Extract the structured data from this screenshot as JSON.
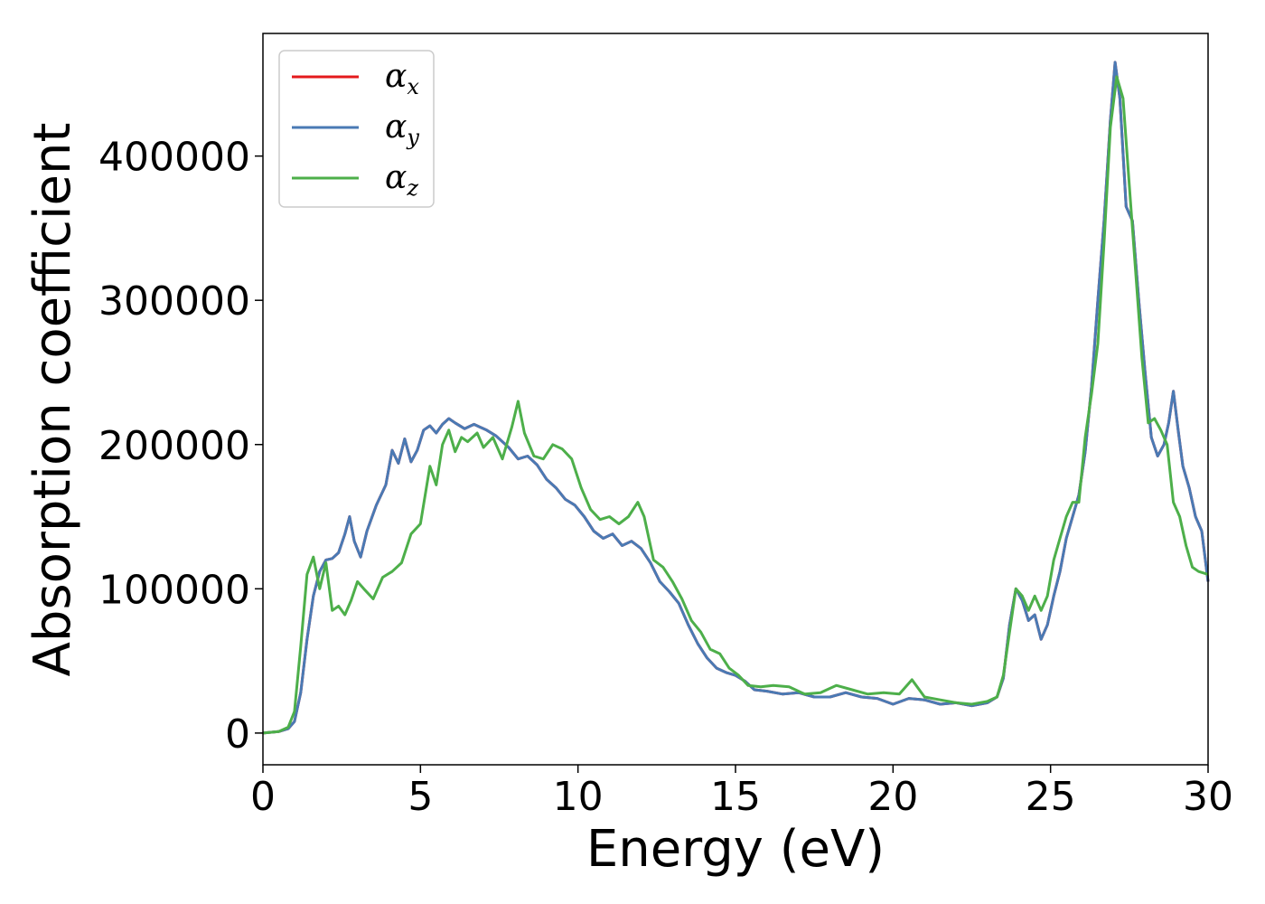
{
  "chart_data": {
    "type": "line",
    "xlabel": "Energy (eV)",
    "ylabel": "Absorption coefficient",
    "xlim": [
      0,
      30
    ],
    "ylim": [
      -22000,
      485000
    ],
    "xticks": [
      "0",
      "5",
      "10",
      "15",
      "20",
      "25",
      "30"
    ],
    "yticks": [
      "0",
      "100000",
      "200000",
      "300000",
      "400000"
    ],
    "grid": false,
    "legend_placement": "top-left",
    "series": [
      {
        "name": "αx",
        "symbol": "α",
        "sub": "x",
        "color": "#e41a1c",
        "x": [
          0,
          0.5,
          0.8,
          1.0,
          1.2,
          1.4,
          1.6,
          1.8,
          2.0,
          2.2,
          2.4,
          2.6,
          2.75,
          2.9,
          3.1,
          3.3,
          3.6,
          3.9,
          4.1,
          4.3,
          4.5,
          4.7,
          4.9,
          5.1,
          5.3,
          5.5,
          5.7,
          5.9,
          6.1,
          6.4,
          6.7,
          6.9,
          7.1,
          7.4,
          7.8,
          8.1,
          8.4,
          8.7,
          9.0,
          9.3,
          9.6,
          9.9,
          10.2,
          10.5,
          10.8,
          11.1,
          11.4,
          11.7,
          12.0,
          12.3,
          12.6,
          12.9,
          13.2,
          13.5,
          13.8,
          14.1,
          14.4,
          14.7,
          15.0,
          15.3,
          15.6,
          16.0,
          16.5,
          17.0,
          17.5,
          18.0,
          18.5,
          19.0,
          19.5,
          20.0,
          20.5,
          21.0,
          21.5,
          22.0,
          22.5,
          23.0,
          23.3,
          23.5,
          23.7,
          23.9,
          24.1,
          24.3,
          24.5,
          24.7,
          24.9,
          25.1,
          25.3,
          25.5,
          25.7,
          25.9,
          26.1,
          26.3,
          26.5,
          26.7,
          26.9,
          27.05,
          27.2,
          27.4,
          27.6,
          27.8,
          28.0,
          28.2,
          28.4,
          28.6,
          28.75,
          28.9,
          29.05,
          29.2,
          29.4,
          29.6,
          29.8,
          30.0
        ],
        "y": [
          0,
          1000,
          3000,
          8000,
          28000,
          65000,
          95000,
          112000,
          120000,
          121000,
          125000,
          138000,
          150000,
          133000,
          122000,
          140000,
          158000,
          172000,
          196000,
          187000,
          204000,
          188000,
          196000,
          210000,
          213000,
          208000,
          214000,
          218000,
          215000,
          211000,
          214000,
          212000,
          210000,
          206000,
          198000,
          190000,
          192000,
          186000,
          176000,
          170000,
          162000,
          158000,
          150000,
          140000,
          135000,
          138000,
          130000,
          133000,
          128000,
          118000,
          105000,
          98000,
          90000,
          75000,
          62000,
          52000,
          45000,
          42000,
          40000,
          36000,
          30000,
          29000,
          27000,
          28000,
          25000,
          25000,
          28000,
          25000,
          24000,
          20000,
          24000,
          23000,
          20000,
          21000,
          19000,
          21000,
          25000,
          38000,
          75000,
          100000,
          92000,
          78000,
          82000,
          65000,
          75000,
          95000,
          112000,
          135000,
          150000,
          165000,
          195000,
          240000,
          300000,
          355000,
          425000,
          465000,
          440000,
          365000,
          355000,
          300000,
          250000,
          205000,
          192000,
          200000,
          215000,
          237000,
          210000,
          185000,
          170000,
          150000,
          140000,
          105000
        ]
      },
      {
        "name": "αy",
        "symbol": "α",
        "sub": "y",
        "color": "#4a7ab4",
        "x": [
          0,
          0.5,
          0.8,
          1.0,
          1.2,
          1.4,
          1.6,
          1.8,
          2.0,
          2.2,
          2.4,
          2.6,
          2.75,
          2.9,
          3.1,
          3.3,
          3.6,
          3.9,
          4.1,
          4.3,
          4.5,
          4.7,
          4.9,
          5.1,
          5.3,
          5.5,
          5.7,
          5.9,
          6.1,
          6.4,
          6.7,
          6.9,
          7.1,
          7.4,
          7.8,
          8.1,
          8.4,
          8.7,
          9.0,
          9.3,
          9.6,
          9.9,
          10.2,
          10.5,
          10.8,
          11.1,
          11.4,
          11.7,
          12.0,
          12.3,
          12.6,
          12.9,
          13.2,
          13.5,
          13.8,
          14.1,
          14.4,
          14.7,
          15.0,
          15.3,
          15.6,
          16.0,
          16.5,
          17.0,
          17.5,
          18.0,
          18.5,
          19.0,
          19.5,
          20.0,
          20.5,
          21.0,
          21.5,
          22.0,
          22.5,
          23.0,
          23.3,
          23.5,
          23.7,
          23.9,
          24.1,
          24.3,
          24.5,
          24.7,
          24.9,
          25.1,
          25.3,
          25.5,
          25.7,
          25.9,
          26.1,
          26.3,
          26.5,
          26.7,
          26.9,
          27.05,
          27.2,
          27.4,
          27.6,
          27.8,
          28.0,
          28.2,
          28.4,
          28.6,
          28.75,
          28.9,
          29.05,
          29.2,
          29.4,
          29.6,
          29.8,
          30.0
        ],
        "y": [
          0,
          1000,
          3000,
          8000,
          28000,
          65000,
          95000,
          112000,
          120000,
          121000,
          125000,
          138000,
          150000,
          133000,
          122000,
          140000,
          158000,
          172000,
          196000,
          187000,
          204000,
          188000,
          196000,
          210000,
          213000,
          208000,
          214000,
          218000,
          215000,
          211000,
          214000,
          212000,
          210000,
          206000,
          198000,
          190000,
          192000,
          186000,
          176000,
          170000,
          162000,
          158000,
          150000,
          140000,
          135000,
          138000,
          130000,
          133000,
          128000,
          118000,
          105000,
          98000,
          90000,
          75000,
          62000,
          52000,
          45000,
          42000,
          40000,
          36000,
          30000,
          29000,
          27000,
          28000,
          25000,
          25000,
          28000,
          25000,
          24000,
          20000,
          24000,
          23000,
          20000,
          21000,
          19000,
          21000,
          25000,
          38000,
          75000,
          100000,
          92000,
          78000,
          82000,
          65000,
          75000,
          95000,
          112000,
          135000,
          150000,
          165000,
          195000,
          240000,
          300000,
          355000,
          425000,
          465000,
          440000,
          365000,
          355000,
          300000,
          250000,
          205000,
          192000,
          200000,
          215000,
          237000,
          210000,
          185000,
          170000,
          150000,
          140000,
          105000
        ]
      },
      {
        "name": "αz",
        "symbol": "α",
        "sub": "z",
        "color": "#4daf4a",
        "x": [
          0,
          0.5,
          0.8,
          1.0,
          1.2,
          1.4,
          1.6,
          1.8,
          2.0,
          2.2,
          2.4,
          2.6,
          2.8,
          3.0,
          3.2,
          3.5,
          3.8,
          4.1,
          4.4,
          4.7,
          5.0,
          5.3,
          5.5,
          5.7,
          5.9,
          6.1,
          6.3,
          6.5,
          6.8,
          7.0,
          7.3,
          7.6,
          7.9,
          8.1,
          8.3,
          8.6,
          8.9,
          9.2,
          9.5,
          9.8,
          10.1,
          10.4,
          10.7,
          11.0,
          11.3,
          11.6,
          11.9,
          12.1,
          12.4,
          12.7,
          13.0,
          13.3,
          13.6,
          13.9,
          14.2,
          14.5,
          14.8,
          15.1,
          15.4,
          15.8,
          16.2,
          16.7,
          17.2,
          17.7,
          18.2,
          18.7,
          19.2,
          19.7,
          20.2,
          20.6,
          21.0,
          21.5,
          22.0,
          22.5,
          23.0,
          23.3,
          23.5,
          23.7,
          23.9,
          24.1,
          24.3,
          24.5,
          24.7,
          24.9,
          25.1,
          25.3,
          25.5,
          25.7,
          25.9,
          26.1,
          26.3,
          26.5,
          26.7,
          26.9,
          27.1,
          27.3,
          27.5,
          27.7,
          27.9,
          28.1,
          28.3,
          28.5,
          28.7,
          28.9,
          29.1,
          29.3,
          29.5,
          29.7,
          30.0
        ],
        "y": [
          0,
          1000,
          4000,
          15000,
          60000,
          110000,
          122000,
          100000,
          118000,
          85000,
          88000,
          82000,
          92000,
          105000,
          100000,
          93000,
          108000,
          112000,
          118000,
          138000,
          145000,
          185000,
          172000,
          200000,
          210000,
          195000,
          205000,
          202000,
          208000,
          198000,
          205000,
          190000,
          212000,
          230000,
          208000,
          192000,
          190000,
          200000,
          197000,
          190000,
          170000,
          155000,
          148000,
          150000,
          145000,
          150000,
          160000,
          150000,
          120000,
          115000,
          105000,
          93000,
          78000,
          70000,
          58000,
          55000,
          45000,
          40000,
          33000,
          32000,
          33000,
          32000,
          27000,
          28000,
          33000,
          30000,
          27000,
          28000,
          27000,
          37000,
          25000,
          23000,
          21000,
          20000,
          22000,
          25000,
          40000,
          70000,
          100000,
          95000,
          85000,
          95000,
          85000,
          95000,
          120000,
          135000,
          150000,
          160000,
          160000,
          205000,
          235000,
          270000,
          340000,
          420000,
          455000,
          440000,
          380000,
          320000,
          260000,
          215000,
          218000,
          210000,
          200000,
          160000,
          150000,
          130000,
          115000,
          112000,
          110000
        ]
      }
    ]
  }
}
